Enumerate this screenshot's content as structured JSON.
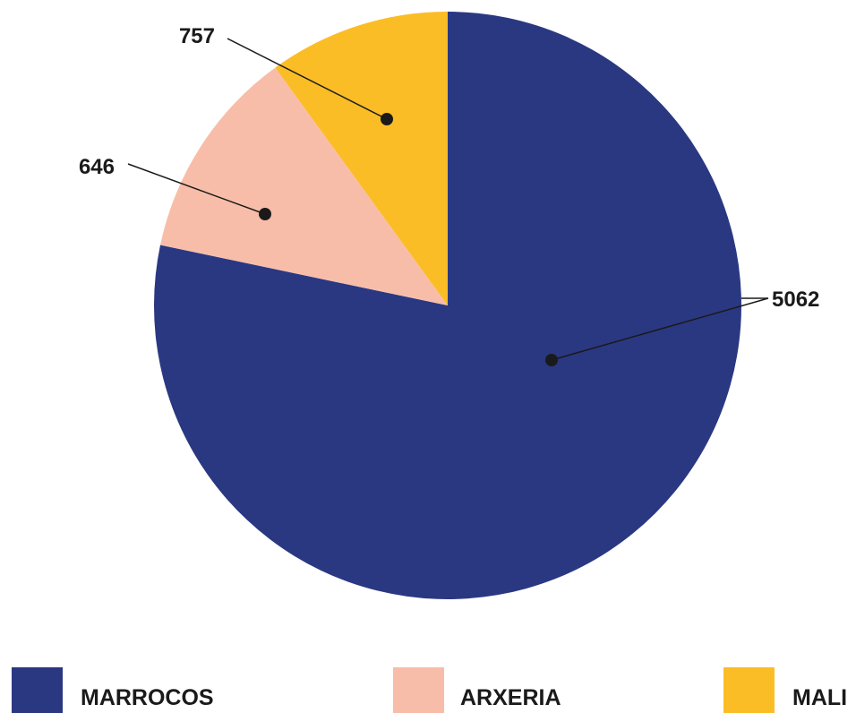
{
  "chart_data": {
    "type": "pie",
    "series": [
      {
        "categories": [
          "MARROCOS",
          "ARXERIA",
          "MALI"
        ],
        "values": [
          5062,
          757,
          646
        ],
        "data_labels": [
          "5062",
          "757",
          "646"
        ],
        "colors": [
          "#2a3882",
          "#f8bda9",
          "#fbbd26"
        ]
      }
    ],
    "legend": {
      "placement": "bottom",
      "items": [
        {
          "label": "MARROCOS",
          "color": "#2a3882"
        },
        {
          "label": "ARXERIA",
          "color": "#f8bda9"
        },
        {
          "label": "MALI",
          "color": "#fbbd26"
        }
      ]
    },
    "start_angle_deg": 0,
    "direction": "clockwise"
  }
}
